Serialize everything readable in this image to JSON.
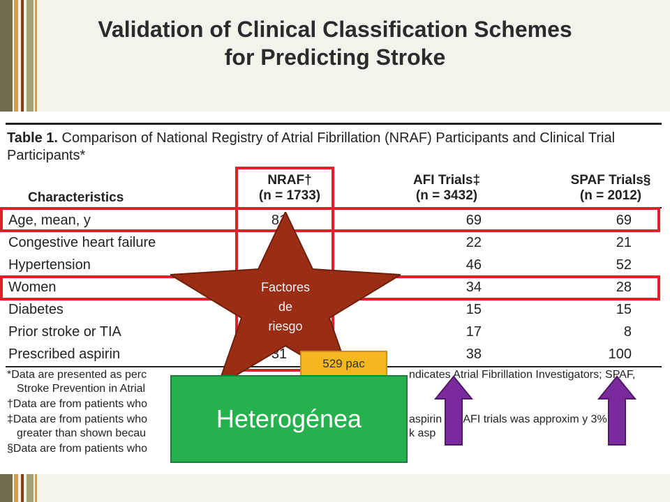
{
  "slide": {
    "title_line1": "Validation of Clinical Classification Schemes",
    "title_line2": "for Predicting Stroke"
  },
  "table": {
    "caption_label": "Table 1.",
    "caption_text": " Comparison of National Registry of Atrial Fibrillation (NRAF) Participants and Clinical Trial Participants*",
    "headers": {
      "characteristics": "Characteristics",
      "nraf_line1": "NRAF†",
      "nraf_line2": "(n = 1733)",
      "afi_line1": "AFI Trials‡",
      "afi_line2": "(n = 3432)",
      "spaf_line1": "SPAF Trials§",
      "spaf_line2": "(n = 2012)"
    },
    "rows": [
      {
        "label": "Age, mean, y",
        "nraf": "81",
        "afi": "69",
        "spaf": "69"
      },
      {
        "label": "Congestive heart failure",
        "nraf": "",
        "afi": "22",
        "spaf": "21"
      },
      {
        "label": "Hypertension",
        "nraf": "",
        "afi": "46",
        "spaf": "52"
      },
      {
        "label": "Women",
        "nraf": "",
        "afi": "34",
        "spaf": "28"
      },
      {
        "label": "Diabetes",
        "nraf": "",
        "afi": "15",
        "spaf": "15"
      },
      {
        "label": "Prior stroke or TIA",
        "nraf": "",
        "afi": "17",
        "spaf": "8"
      },
      {
        "label": "Prescribed aspirin",
        "nraf": "31",
        "afi": "38",
        "spaf": "100"
      }
    ],
    "footnotes": {
      "f1_left": "*Data are presented as perc",
      "f1_right": "ndicates Atrial Fibrillation Investigators; SPAF,",
      "f2_left": "Stroke Prevention in Atrial",
      "f3_left": "†Data are from patients who",
      "f4_left": "‡Data are from patients who",
      "f4_right": "aspirin the AFI trials was approxim     y 3%",
      "f5_left": "greater than shown becau",
      "f5_right": "k asp",
      "f6_left": "§Data are from patients who"
    }
  },
  "overlays": {
    "star_text_line1": "Factores",
    "star_text_line2": "de",
    "star_text_line3": "riesgo",
    "pac_label": "529 pac",
    "green_label": "Heterogénea",
    "colors": {
      "red": "#e0202a",
      "star": "#9b2d14",
      "orange": "#f5b720",
      "green": "#27b04e",
      "arrow": "#7b2a9e"
    }
  }
}
